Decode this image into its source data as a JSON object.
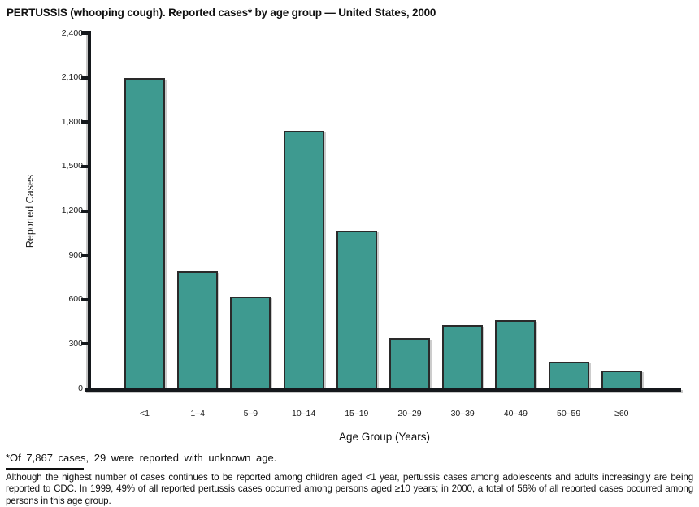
{
  "figure": {
    "title": "PERTUSSIS (whooping cough). Reported cases* by age group — United States, 2000",
    "footnote1": "*Of 7,867 cases, 29 were reported with unknown age.",
    "footnote2": "Although the highest number of cases continues to be reported among children aged <1 year, pertussis cases among adolescents and adults increasingly are being reported to CDC. In 1999, 49% of all reported pertussis cases occurred among persons aged ≥10 years; in 2000, a total of 56% of all reported cases occurred among persons in this age group."
  },
  "chart_data": {
    "type": "bar",
    "title": "PERTUSSIS (whooping cough). Reported cases* by age group — United States, 2000",
    "categories": [
      "<1",
      "1–4",
      "5–9",
      "10–14",
      "15–19",
      "20–29",
      "30–39",
      "40–49",
      "50–59",
      "≥60"
    ],
    "values": [
      2100,
      790,
      620,
      1740,
      1065,
      340,
      430,
      460,
      180,
      120
    ],
    "xlabel": "Age Group (Years)",
    "ylabel": "Reported Cases",
    "ylim": [
      0,
      2400
    ],
    "ytick_step": 300,
    "ytick_labels": [
      "0",
      "300",
      "600",
      "900",
      "1,200",
      "1,500",
      "1,800",
      "2,100",
      "2,400"
    ],
    "grid": "off",
    "legend": "none",
    "bar_color": "#3E9A90",
    "bar_border_color": "#2A2A2A",
    "axis_color": "#15181C"
  }
}
